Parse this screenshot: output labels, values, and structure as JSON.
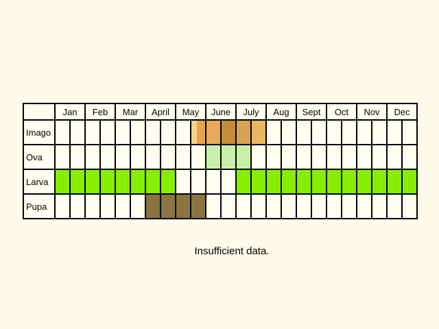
{
  "months": [
    "Jan",
    "Feb",
    "Mar",
    "April",
    "May",
    "June",
    "July",
    "Aug",
    "Sept",
    "Oct",
    "Nov",
    "Dec"
  ],
  "stages": [
    {
      "label": "Imago",
      "periods": [
        "",
        "",
        "",
        "",
        "",
        "",
        "",
        "",
        "",
        "#f0b462",
        "#e6aa58",
        "#c68c3e",
        "#d8a255",
        "#e8b860",
        "",
        "",
        "",
        "",
        "",
        "",
        "",
        "",
        "",
        ""
      ],
      "split_cells": {
        "9": [
          "#f8d28a",
          "#e7a44e"
        ]
      }
    },
    {
      "label": "Ova",
      "periods": [
        "",
        "",
        "",
        "",
        "",
        "",
        "",
        "",
        "",
        "",
        "#c8f0a8",
        "#c8f0a8",
        "#c8f0a8",
        "",
        "",
        "",
        "",
        "",
        "",
        "",
        "",
        "",
        "",
        ""
      ]
    },
    {
      "label": "Larva",
      "periods": [
        "#88ee00",
        "#88ee00",
        "#88ee00",
        "#88ee00",
        "#88ee00",
        "#88ee00",
        "#88ee00",
        "#88ee00",
        "",
        "",
        "",
        "",
        "#88ee00",
        "#88ee00",
        "#88ee00",
        "#88ee00",
        "#88ee00",
        "#88ee00",
        "#88ee00",
        "#88ee00",
        "#88ee00",
        "#88ee00",
        "#88ee00",
        "#88ee00"
      ]
    },
    {
      "label": "Pupa",
      "periods": [
        "",
        "",
        "",
        "",
        "",
        "",
        "#8c7440",
        "#8c7440",
        "#8c7440",
        "#8c7440",
        "",
        "",
        "",
        "",
        "",
        "",
        "",
        "",
        "",
        "",
        "",
        "",
        "",
        ""
      ]
    }
  ],
  "note": "Insufficient data."
}
